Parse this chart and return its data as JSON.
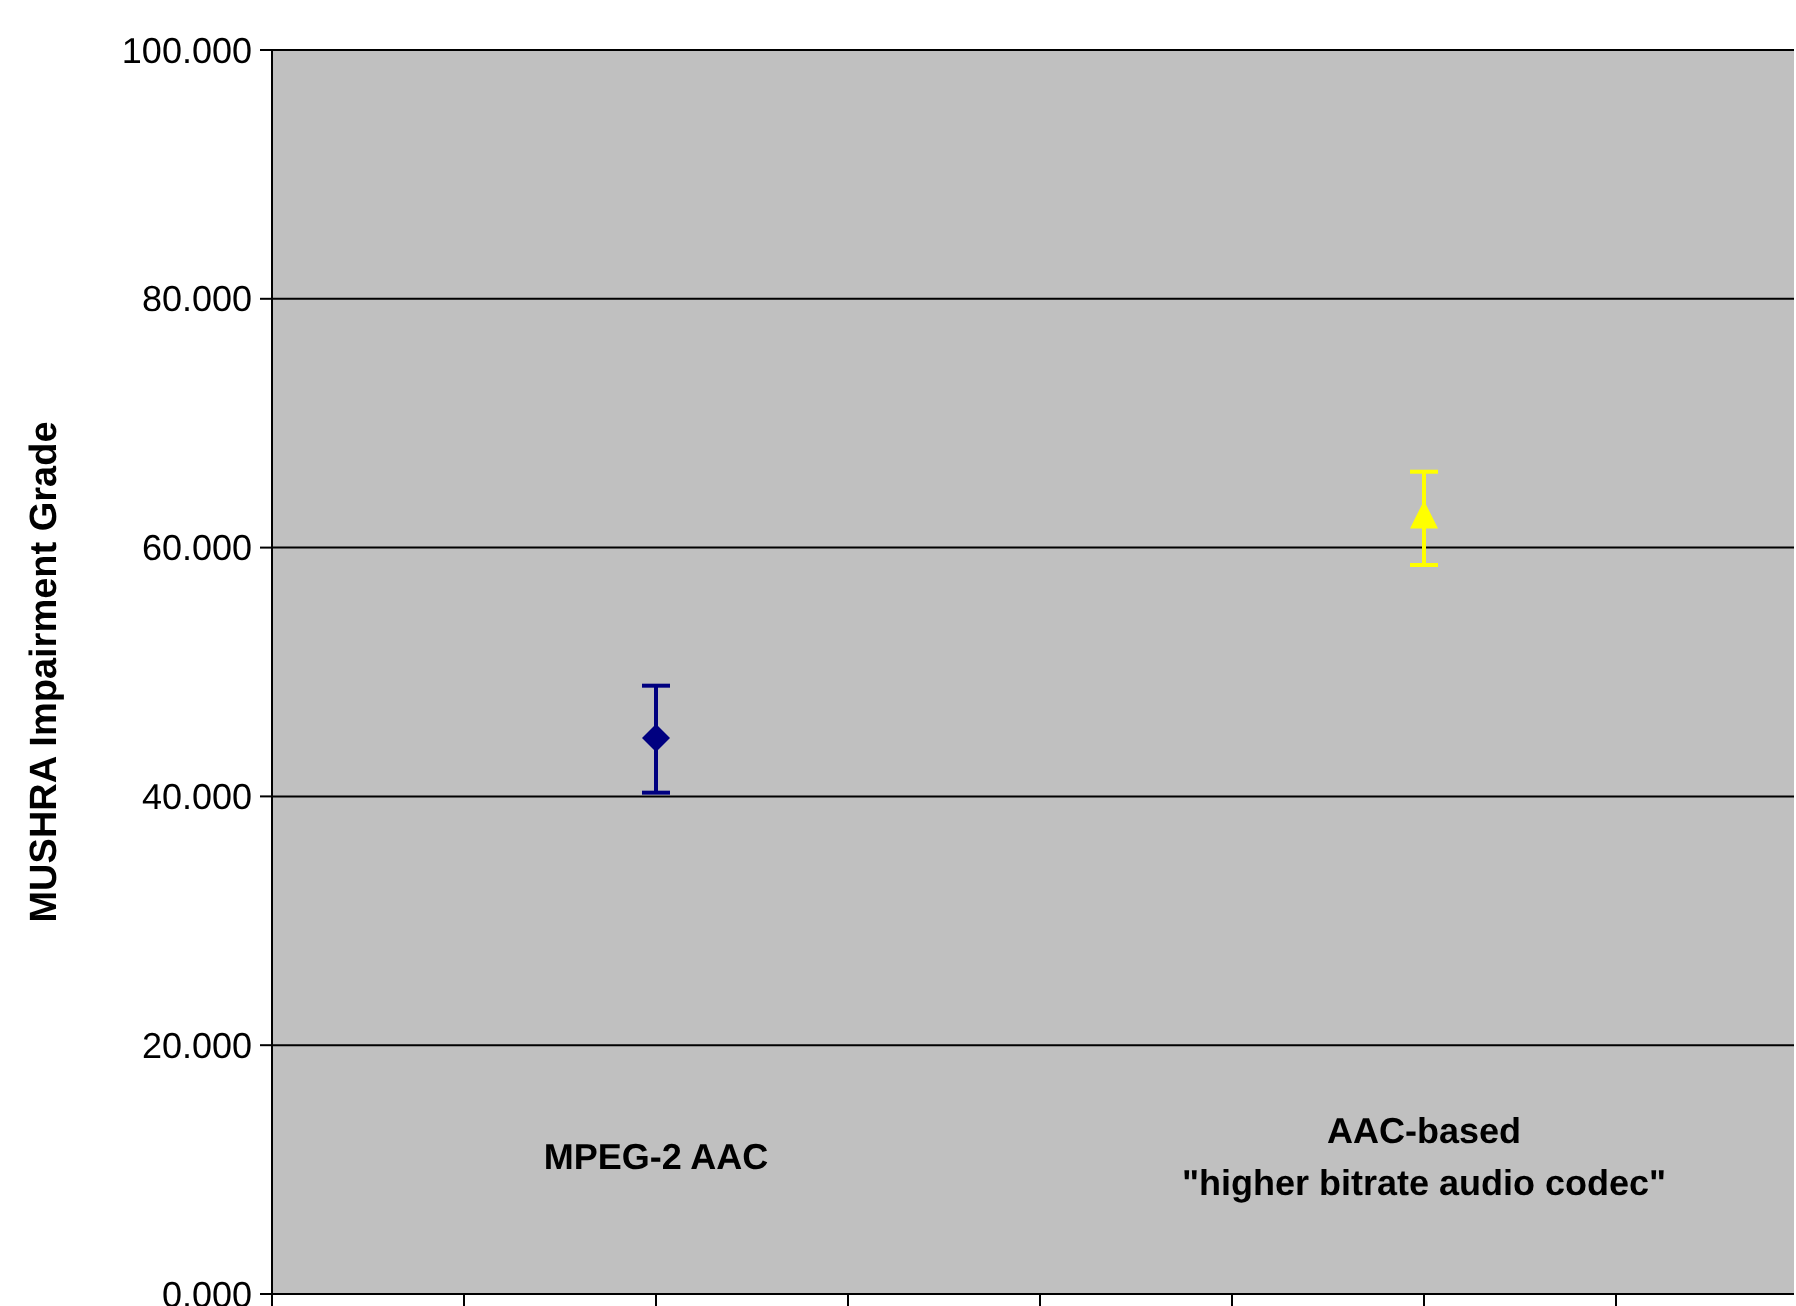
{
  "chart_data": {
    "type": "scatter",
    "ylabel": "MUSHRA Impairment Grade",
    "categories": [
      "MPEG-2 AAC",
      "AAC-based\n\"higher bitrate audio codec\""
    ],
    "ylim": [
      0,
      100
    ],
    "yticks": [
      {
        "value": 0,
        "label": "0.000"
      },
      {
        "value": 20,
        "label": "20.000"
      },
      {
        "value": 40,
        "label": "40.000"
      },
      {
        "value": 60,
        "label": "60.000"
      },
      {
        "value": 80,
        "label": "80.000"
      },
      {
        "value": 100,
        "label": "100.000"
      }
    ],
    "grid": "y",
    "series": [
      {
        "color": "#000080",
        "marker": "diamond",
        "values": [
          44.7,
          null
        ],
        "errors": [
          [
            40.3,
            48.9
          ],
          null
        ]
      },
      {
        "color": "#ffff00",
        "marker": "triangle",
        "values": [
          null,
          62.5
        ],
        "errors": [
          null,
          [
            58.6,
            66.1
          ]
        ]
      }
    ]
  }
}
